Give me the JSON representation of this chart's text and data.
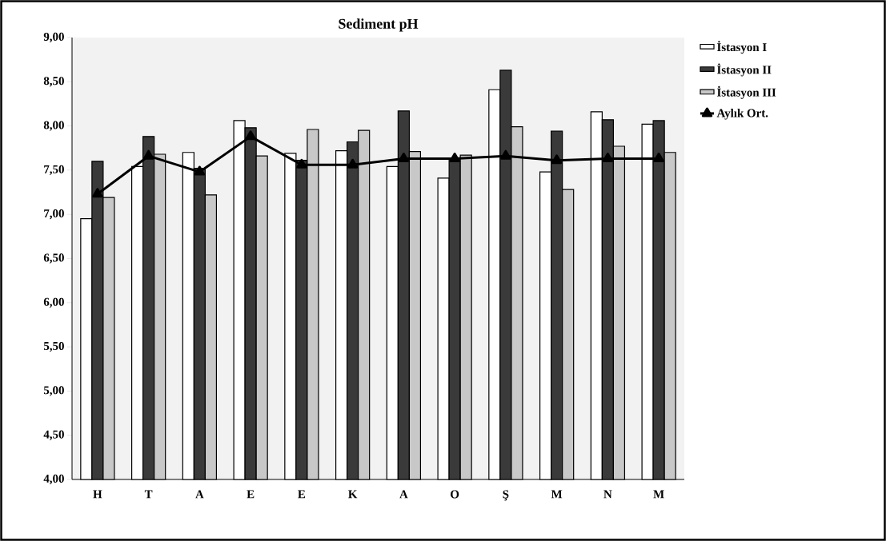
{
  "chart_data": {
    "type": "bar",
    "title": "Sediment pH",
    "categories": [
      "H",
      "T",
      "A",
      "E",
      "E",
      "K",
      "A",
      "O",
      "Ş",
      "M",
      "N",
      "M"
    ],
    "series": [
      {
        "name": "İstasyon I",
        "color": "#ffffff",
        "values": [
          6.95,
          7.54,
          7.7,
          8.06,
          7.69,
          7.72,
          7.54,
          7.41,
          8.41,
          7.48,
          8.16,
          8.02
        ]
      },
      {
        "name": "İstasyon II",
        "color": "#3a3a3a",
        "values": [
          7.6,
          7.88,
          7.52,
          7.98,
          7.61,
          7.82,
          8.17,
          7.63,
          8.63,
          7.94,
          8.07,
          8.06
        ]
      },
      {
        "name": "İstasyon III",
        "color": "#c8c8c8",
        "values": [
          7.19,
          7.68,
          7.22,
          7.66,
          7.96,
          7.95,
          7.71,
          7.67,
          7.99,
          7.28,
          7.77,
          7.7
        ]
      },
      {
        "name": "Aylık Ort.",
        "type": "line",
        "color": "#000000",
        "values": [
          7.23,
          7.66,
          7.48,
          7.88,
          7.56,
          7.56,
          7.63,
          7.63,
          7.66,
          7.61,
          7.63,
          7.63
        ]
      }
    ],
    "ylim": [
      4,
      9
    ],
    "yticks": [
      {
        "value": 4,
        "label": "4,00"
      },
      {
        "value": 4.5,
        "label": "4,50"
      },
      {
        "value": 5,
        "label": "5,00"
      },
      {
        "value": 5.5,
        "label": "5,50"
      },
      {
        "value": 6,
        "label": "6,00"
      },
      {
        "value": 6.5,
        "label": "6,50"
      },
      {
        "value": 7,
        "label": "7,00"
      },
      {
        "value": 7.5,
        "label": "7,50"
      },
      {
        "value": 8,
        "label": "8,00"
      },
      {
        "value": 8.5,
        "label": "8,50"
      },
      {
        "value": 9,
        "label": "9,00"
      }
    ],
    "grid": false,
    "legend": "right",
    "marker": "triangle",
    "line_style": "solid"
  }
}
